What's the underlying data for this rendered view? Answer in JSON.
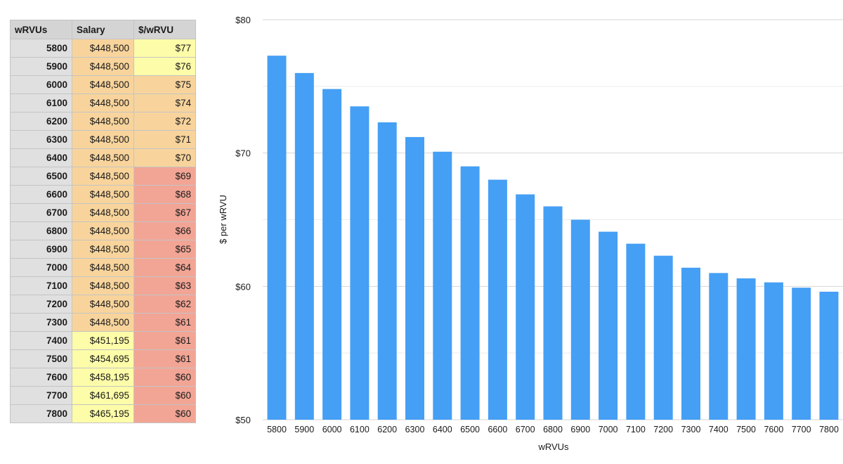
{
  "table": {
    "headers": [
      "wRVUs",
      "Salary",
      "$/wRVU"
    ],
    "rows": [
      {
        "wrvus": "5800",
        "salary": "$448,500",
        "per": "$77",
        "salary_color": "#f8d49c",
        "per_color": "#fdfca8"
      },
      {
        "wrvus": "5900",
        "salary": "$448,500",
        "per": "$76",
        "salary_color": "#f8d49c",
        "per_color": "#fdfca8"
      },
      {
        "wrvus": "6000",
        "salary": "$448,500",
        "per": "$75",
        "salary_color": "#f8d49c",
        "per_color": "#f8d49c"
      },
      {
        "wrvus": "6100",
        "salary": "$448,500",
        "per": "$74",
        "salary_color": "#f8d49c",
        "per_color": "#f8d49c"
      },
      {
        "wrvus": "6200",
        "salary": "$448,500",
        "per": "$72",
        "salary_color": "#f8d49c",
        "per_color": "#f8d49c"
      },
      {
        "wrvus": "6300",
        "salary": "$448,500",
        "per": "$71",
        "salary_color": "#f8d49c",
        "per_color": "#f8d49c"
      },
      {
        "wrvus": "6400",
        "salary": "$448,500",
        "per": "$70",
        "salary_color": "#f8d49c",
        "per_color": "#f8d49c"
      },
      {
        "wrvus": "6500",
        "salary": "$448,500",
        "per": "$69",
        "salary_color": "#f8d49c",
        "per_color": "#f2a595"
      },
      {
        "wrvus": "6600",
        "salary": "$448,500",
        "per": "$68",
        "salary_color": "#f8d49c",
        "per_color": "#f2a595"
      },
      {
        "wrvus": "6700",
        "salary": "$448,500",
        "per": "$67",
        "salary_color": "#f8d49c",
        "per_color": "#f2a595"
      },
      {
        "wrvus": "6800",
        "salary": "$448,500",
        "per": "$66",
        "salary_color": "#f8d49c",
        "per_color": "#f2a595"
      },
      {
        "wrvus": "6900",
        "salary": "$448,500",
        "per": "$65",
        "salary_color": "#f8d49c",
        "per_color": "#f2a595"
      },
      {
        "wrvus": "7000",
        "salary": "$448,500",
        "per": "$64",
        "salary_color": "#f8d49c",
        "per_color": "#f2a595"
      },
      {
        "wrvus": "7100",
        "salary": "$448,500",
        "per": "$63",
        "salary_color": "#f8d49c",
        "per_color": "#f2a595"
      },
      {
        "wrvus": "7200",
        "salary": "$448,500",
        "per": "$62",
        "salary_color": "#f8d49c",
        "per_color": "#f2a595"
      },
      {
        "wrvus": "7300",
        "salary": "$448,500",
        "per": "$61",
        "salary_color": "#f8d49c",
        "per_color": "#f2a595"
      },
      {
        "wrvus": "7400",
        "salary": "$451,195",
        "per": "$61",
        "salary_color": "#fdfca8",
        "per_color": "#f2a595"
      },
      {
        "wrvus": "7500",
        "salary": "$454,695",
        "per": "$61",
        "salary_color": "#fdfca8",
        "per_color": "#f2a595"
      },
      {
        "wrvus": "7600",
        "salary": "$458,195",
        "per": "$60",
        "salary_color": "#fdfca8",
        "per_color": "#f2a595"
      },
      {
        "wrvus": "7700",
        "salary": "$461,695",
        "per": "$60",
        "salary_color": "#fdfca8",
        "per_color": "#f2a595"
      },
      {
        "wrvus": "7800",
        "salary": "$465,195",
        "per": "$60",
        "salary_color": "#fdfca8",
        "per_color": "#f2a595"
      }
    ]
  },
  "chart_data": {
    "type": "bar",
    "title": "",
    "xlabel": "wRVUs",
    "ylabel": "$ per wRVU",
    "categories": [
      "5800",
      "5900",
      "6000",
      "6100",
      "6200",
      "6300",
      "6400",
      "6500",
      "6600",
      "6700",
      "6800",
      "6900",
      "7000",
      "7100",
      "7200",
      "7300",
      "7400",
      "7500",
      "7600",
      "7700",
      "7800"
    ],
    "values": [
      77.3,
      76.0,
      74.8,
      73.5,
      72.3,
      71.2,
      70.1,
      69.0,
      68.0,
      66.9,
      66.0,
      65.0,
      64.1,
      63.2,
      62.3,
      61.4,
      61.0,
      60.6,
      60.3,
      59.9,
      59.6
    ],
    "ylim": [
      50,
      80
    ],
    "yticks": [
      50,
      60,
      70,
      80
    ],
    "ytick_labels": [
      "$50",
      "$60",
      "$70",
      "$80"
    ],
    "grid": true,
    "bar_color": "#459ff5"
  }
}
